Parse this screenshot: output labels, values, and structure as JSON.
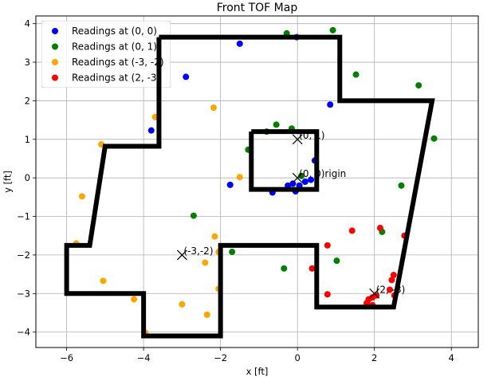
{
  "chart_data": {
    "type": "scatter",
    "title": "Front TOF Map",
    "xlabel": "x [ft]",
    "ylabel": "y [ft]",
    "xlim": [
      -6.8,
      4.7
    ],
    "ylim": [
      -4.4,
      4.2
    ],
    "xticks": [
      -6,
      -4,
      -2,
      0,
      2,
      4
    ],
    "yticks": [
      -4,
      -3,
      -2,
      -1,
      0,
      1,
      2,
      3,
      4
    ],
    "xtick_labels": [
      "−6",
      "−4",
      "−2",
      "0",
      "2",
      "4"
    ],
    "ytick_labels": [
      "−4",
      "−3",
      "−2",
      "−1",
      "0",
      "1",
      "2",
      "3",
      "4"
    ],
    "grid": true,
    "legend_position": "top-left",
    "series": [
      {
        "name": "Readings at (0, 0)",
        "color": "#0000ff",
        "points": [
          [
            -1.5,
            3.48
          ],
          [
            -0.02,
            3.65
          ],
          [
            -2.9,
            2.62
          ],
          [
            -3.8,
            1.23
          ],
          [
            0.85,
            1.9
          ],
          [
            -1.75,
            -0.18
          ],
          [
            -0.65,
            -0.38
          ],
          [
            -0.12,
            -0.15
          ],
          [
            -0.05,
            -0.35
          ],
          [
            0.2,
            -0.1
          ],
          [
            0.45,
            0.45
          ],
          [
            0.35,
            -0.05
          ],
          [
            -0.25,
            -0.2
          ],
          [
            0.05,
            -0.2
          ]
        ]
      },
      {
        "name": "Readings at (0, 1)",
        "color": "#008000",
        "points": [
          [
            -0.28,
            3.75
          ],
          [
            0.92,
            3.83
          ],
          [
            1.52,
            2.68
          ],
          [
            3.15,
            2.4
          ],
          [
            3.55,
            1.02
          ],
          [
            -0.55,
            1.38
          ],
          [
            -0.15,
            1.28
          ],
          [
            -1.28,
            0.73
          ],
          [
            2.7,
            -0.2
          ],
          [
            -2.7,
            -0.98
          ],
          [
            2.2,
            -1.4
          ],
          [
            -1.7,
            -1.92
          ],
          [
            1.02,
            -2.15
          ],
          [
            -0.35,
            -2.35
          ],
          [
            -0.8,
            1.2
          ],
          [
            0.1,
            0.05
          ]
        ]
      },
      {
        "name": "Readings at (-3, -2)",
        "color": "#ffa500",
        "points": [
          [
            -3.7,
            1.58
          ],
          [
            -2.18,
            1.82
          ],
          [
            -5.1,
            0.87
          ],
          [
            -1.5,
            0.02
          ],
          [
            -5.6,
            -0.48
          ],
          [
            -5.75,
            -1.7
          ],
          [
            -2.15,
            -1.52
          ],
          [
            -2.05,
            -1.92
          ],
          [
            -2.4,
            -2.2
          ],
          [
            -5.05,
            -2.67
          ],
          [
            -2.05,
            -2.88
          ],
          [
            -4.25,
            -3.15
          ],
          [
            -3.0,
            -3.28
          ],
          [
            -2.35,
            -3.55
          ],
          [
            -3.95,
            -4.02
          ]
        ]
      },
      {
        "name": "Readings at (2, -3)",
        "color": "#ff0000",
        "points": [
          [
            2.15,
            -1.3
          ],
          [
            1.42,
            -1.37
          ],
          [
            2.78,
            -1.5
          ],
          [
            0.78,
            -1.75
          ],
          [
            0.38,
            -2.35
          ],
          [
            2.5,
            -2.52
          ],
          [
            2.45,
            -2.65
          ],
          [
            2.4,
            -2.9
          ],
          [
            2.52,
            -3.05
          ],
          [
            0.78,
            -3.02
          ],
          [
            1.8,
            -3.25
          ],
          [
            1.95,
            -3.3
          ],
          [
            2.05,
            -3.05
          ],
          [
            1.95,
            -3.1
          ],
          [
            1.85,
            -3.15
          ]
        ]
      }
    ],
    "map_outline": [
      [
        -3.6,
        3.65
      ],
      [
        1.1,
        3.65
      ],
      [
        1.1,
        2.0
      ],
      [
        3.5,
        2.0
      ],
      [
        2.5,
        -3.35
      ],
      [
        0.5,
        -3.35
      ],
      [
        0.5,
        -1.75
      ],
      [
        -2.0,
        -1.75
      ],
      [
        -2.0,
        -4.1
      ],
      [
        -4.0,
        -4.1
      ],
      [
        -4.0,
        -3.0
      ],
      [
        -6.0,
        -3.0
      ],
      [
        -6.0,
        -1.75
      ],
      [
        -5.4,
        -1.75
      ],
      [
        -5.0,
        0.82
      ],
      [
        -3.6,
        0.82
      ],
      [
        -3.6,
        3.65
      ]
    ],
    "inner_box": [
      [
        -1.2,
        1.2
      ],
      [
        0.5,
        1.2
      ],
      [
        0.5,
        -0.3
      ],
      [
        -1.2,
        -0.3
      ],
      [
        -1.2,
        1.2
      ]
    ],
    "annotations": [
      {
        "text": "(0, 1)",
        "x": 0.0,
        "y": 1.0
      },
      {
        "text": "(0, 0)rigin",
        "x": 0.0,
        "y": 0.0
      },
      {
        "text": "(-3,-2)",
        "x": -3.0,
        "y": -2.0
      },
      {
        "text": "(2, -3)",
        "x": 2.0,
        "y": -3.0
      }
    ]
  }
}
